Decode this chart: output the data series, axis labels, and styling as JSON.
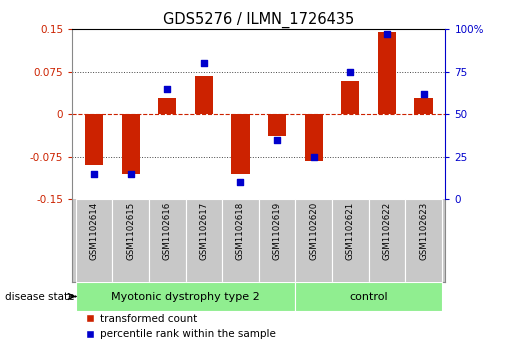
{
  "title": "GDS5276 / ILMN_1726435",
  "samples": [
    "GSM1102614",
    "GSM1102615",
    "GSM1102616",
    "GSM1102617",
    "GSM1102618",
    "GSM1102619",
    "GSM1102620",
    "GSM1102621",
    "GSM1102622",
    "GSM1102623"
  ],
  "red_values": [
    -0.09,
    -0.105,
    0.028,
    0.068,
    -0.105,
    -0.038,
    -0.082,
    0.058,
    0.145,
    0.028
  ],
  "blue_values": [
    15,
    15,
    65,
    80,
    10,
    35,
    25,
    75,
    97,
    62
  ],
  "ylim_red": [
    -0.15,
    0.15
  ],
  "ylim_blue": [
    0,
    100
  ],
  "yticks_red": [
    -0.15,
    -0.075,
    0,
    0.075,
    0.15
  ],
  "ytick_labels_red": [
    "-0.15",
    "-0.075",
    "0",
    "0.075",
    "0.15"
  ],
  "yticks_blue": [
    0,
    25,
    50,
    75,
    100
  ],
  "ytick_labels_blue": [
    "0",
    "25",
    "50",
    "75",
    "100%"
  ],
  "red_color": "#cc2200",
  "blue_color": "#0000cc",
  "bar_width": 0.5,
  "marker_size": 25,
  "bg_label": "#c8c8c8",
  "group1_label": "Myotonic dystrophy type 2",
  "group1_count": 6,
  "group2_label": "control",
  "group2_count": 4,
  "group_color": "#90EE90",
  "legend_red_label": "transformed count",
  "legend_blue_label": "percentile rank within the sample"
}
